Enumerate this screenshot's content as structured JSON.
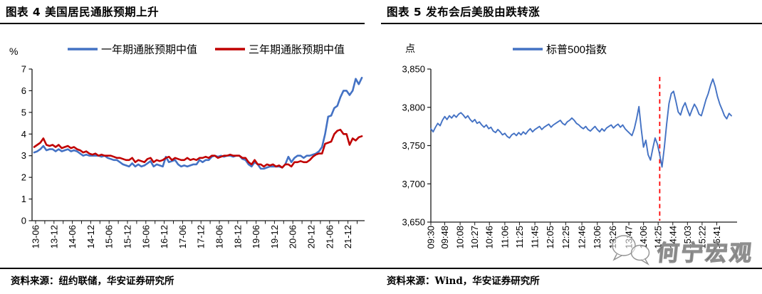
{
  "page": {
    "watermark_text": "何宁宏观"
  },
  "chart_data": [
    {
      "type": "line",
      "title": "图表 4 美国居民通胀预期上升",
      "ylabel": "%",
      "ylim": [
        0,
        7
      ],
      "yticks": [
        0,
        1,
        2,
        3,
        4,
        5,
        6,
        7
      ],
      "x_start": "2013-06",
      "x_interval": "month",
      "x_tick_labels": [
        "13-06",
        "13-12",
        "14-06",
        "14-12",
        "15-06",
        "15-12",
        "16-06",
        "16-12",
        "17-06",
        "17-12",
        "18-06",
        "18-12",
        "19-06",
        "19-12",
        "20-06",
        "20-12",
        "21-06",
        "21-12"
      ],
      "legend_position": "top",
      "grid": false,
      "source": "资料来源：纽约联储，华安证券研究所",
      "series": [
        {
          "name": "一年期通胀预期中值",
          "color": "#4472C4",
          "values": [
            3.15,
            3.2,
            3.3,
            3.45,
            3.25,
            3.3,
            3.3,
            3.2,
            3.3,
            3.2,
            3.25,
            3.3,
            3.2,
            3.25,
            3.2,
            3.1,
            3.0,
            3.05,
            3.0,
            3.0,
            3.0,
            3.0,
            2.95,
            3.0,
            2.9,
            2.85,
            2.8,
            2.8,
            2.7,
            2.6,
            2.55,
            2.5,
            2.65,
            2.5,
            2.6,
            2.5,
            2.55,
            2.65,
            2.75,
            2.5,
            2.6,
            2.55,
            2.5,
            2.95,
            2.7,
            2.75,
            2.8,
            2.6,
            2.5,
            2.55,
            2.5,
            2.55,
            2.6,
            2.6,
            2.8,
            2.7,
            2.8,
            2.8,
            2.95,
            3.0,
            2.95,
            3.0,
            2.95,
            3.0,
            3.0,
            2.95,
            3.0,
            3.0,
            2.85,
            2.8,
            2.6,
            2.5,
            2.7,
            2.6,
            2.4,
            2.4,
            2.45,
            2.5,
            2.5,
            2.5,
            2.5,
            2.45,
            2.6,
            2.95,
            2.7,
            2.9,
            3.0,
            3.0,
            2.9,
            3.0,
            3.0,
            3.05,
            3.1,
            3.2,
            3.4,
            4.0,
            4.8,
            4.85,
            5.2,
            5.3,
            5.7,
            6.0,
            6.0,
            5.8,
            6.0,
            6.55,
            6.3,
            6.6
          ]
        },
        {
          "name": "三年期通胀预期中值",
          "color": "#C00000",
          "values": [
            3.4,
            3.5,
            3.6,
            3.8,
            3.5,
            3.45,
            3.5,
            3.4,
            3.5,
            3.35,
            3.4,
            3.45,
            3.35,
            3.4,
            3.3,
            3.25,
            3.15,
            3.2,
            3.1,
            3.05,
            3.1,
            3.0,
            3.05,
            3.0,
            3.0,
            3.0,
            2.95,
            2.9,
            2.9,
            2.85,
            2.8,
            2.8,
            2.9,
            2.7,
            2.8,
            2.75,
            2.7,
            2.85,
            2.9,
            2.7,
            2.8,
            2.75,
            2.8,
            2.9,
            2.95,
            2.8,
            2.9,
            2.85,
            2.8,
            2.8,
            2.9,
            2.8,
            2.85,
            2.8,
            2.9,
            2.9,
            2.95,
            2.9,
            3.0,
            3.0,
            2.9,
            2.95,
            3.0,
            3.0,
            3.05,
            3.0,
            3.0,
            3.0,
            2.9,
            2.9,
            2.7,
            2.6,
            2.8,
            2.6,
            2.6,
            2.5,
            2.6,
            2.55,
            2.6,
            2.5,
            2.55,
            2.45,
            2.6,
            2.6,
            2.5,
            2.7,
            2.7,
            2.75,
            2.7,
            2.7,
            2.8,
            2.95,
            3.05,
            3.1,
            3.1,
            3.55,
            3.6,
            3.65,
            4.0,
            4.15,
            4.2,
            4.0,
            4.0,
            3.5,
            3.8,
            3.7,
            3.85,
            3.9
          ]
        }
      ]
    },
    {
      "type": "line",
      "title": "图表 5 发布会后美股由跌转涨",
      "ylabel": "点",
      "ylim": [
        3650,
        3850
      ],
      "yticks": [
        3650,
        3700,
        3750,
        3800,
        3850
      ],
      "ytick_labels": [
        "3,650",
        "3,700",
        "3,750",
        "3,800",
        "3,850"
      ],
      "x_tick_labels": [
        "09:30",
        "09:48",
        "10:08",
        "10:27",
        "10:46",
        "11:06",
        "11:25",
        "11:45",
        "12:05",
        "12:25",
        "12:46",
        "13:06",
        "13:26",
        "13:47",
        "14:06",
        "14:25",
        "14:44",
        "15:03",
        "15:22",
        "15:41"
      ],
      "x_start": "09:30",
      "x_end": "16:00",
      "x_interval_minutes": 3,
      "legend_position": "top",
      "grid": false,
      "source": "资料来源：Wind，华安证券研究所",
      "annotation": {
        "type": "vline",
        "time": "14:27",
        "color": "#FF0000",
        "style": "dashed"
      },
      "series": [
        {
          "name": "标普500指数",
          "color": "#4472C4",
          "values": [
            3772,
            3768,
            3774,
            3779,
            3776,
            3783,
            3788,
            3784,
            3789,
            3786,
            3790,
            3787,
            3791,
            3793,
            3790,
            3786,
            3789,
            3784,
            3781,
            3784,
            3779,
            3781,
            3777,
            3774,
            3777,
            3772,
            3774,
            3769,
            3767,
            3771,
            3768,
            3764,
            3766,
            3762,
            3760,
            3764,
            3766,
            3763,
            3767,
            3764,
            3768,
            3765,
            3769,
            3772,
            3768,
            3771,
            3773,
            3775,
            3771,
            3774,
            3776,
            3778,
            3774,
            3777,
            3779,
            3781,
            3783,
            3779,
            3777,
            3781,
            3783,
            3786,
            3783,
            3779,
            3777,
            3774,
            3772,
            3775,
            3771,
            3769,
            3772,
            3775,
            3771,
            3768,
            3772,
            3769,
            3773,
            3775,
            3777,
            3773,
            3776,
            3778,
            3774,
            3777,
            3772,
            3769,
            3766,
            3763,
            3772,
            3785,
            3801,
            3772,
            3748,
            3757,
            3738,
            3731,
            3746,
            3760,
            3752,
            3738,
            3722,
            3748,
            3778,
            3805,
            3818,
            3821,
            3808,
            3794,
            3790,
            3800,
            3806,
            3797,
            3789,
            3797,
            3804,
            3799,
            3791,
            3789,
            3799,
            3810,
            3818,
            3829,
            3837,
            3827,
            3814,
            3804,
            3797,
            3789,
            3785,
            3792,
            3789
          ]
        }
      ]
    }
  ]
}
